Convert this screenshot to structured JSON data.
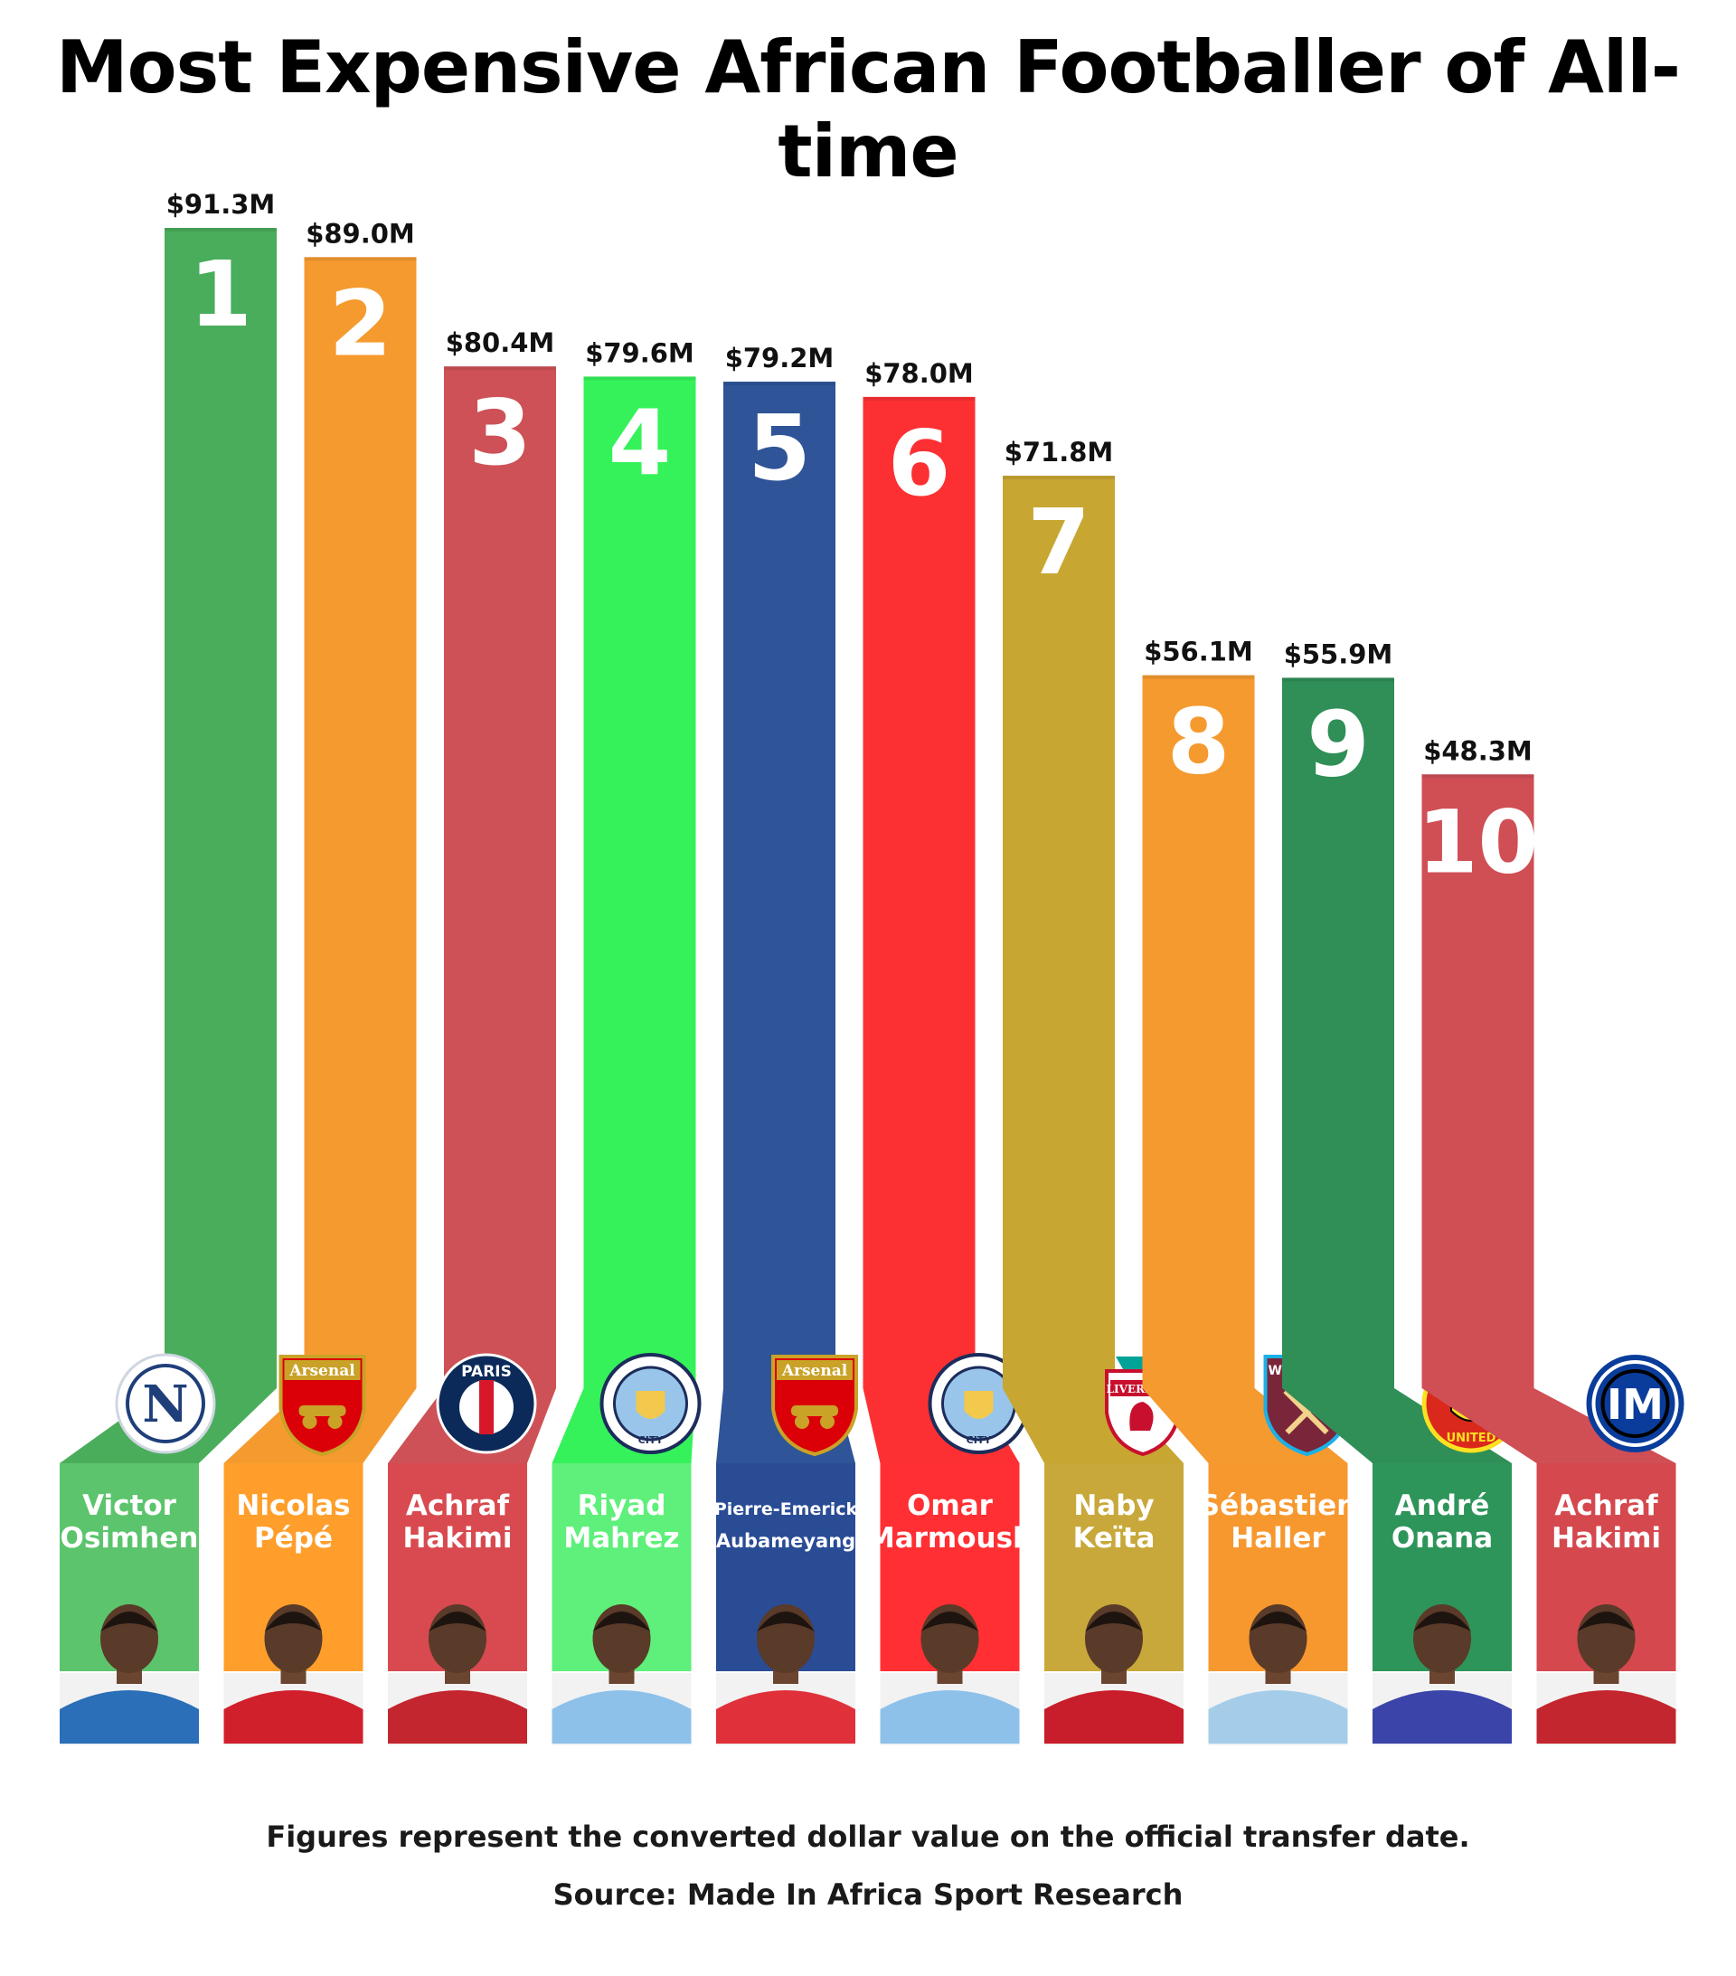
{
  "title": "Most Expensive African Footballer of All-time",
  "footnote": "Figures represent the converted dollar value on the official transfer date.",
  "source": "Source: Made In Africa Sport Research",
  "chart_data": {
    "type": "bar",
    "title": "Most Expensive African Footballer of All-time",
    "ylabel": "",
    "xlabel": "",
    "ylim": [
      0,
      91.3
    ],
    "grid": false,
    "legend": "none",
    "categories": [
      "Victor Osimhen",
      "Nicolas Pépé",
      "Achraf Hakimi",
      "Riyad Mahrez",
      "Pierre-Emerick Aubameyang",
      "Omar Marmoush",
      "Naby Keïta",
      "Sébastien Haller",
      "André Onana",
      "Achraf Hakimi"
    ],
    "values": [
      91.3,
      89.0,
      80.4,
      79.6,
      79.2,
      78.0,
      71.8,
      56.1,
      55.9,
      48.3
    ],
    "bars": [
      {
        "rank": "1",
        "value_label": "$91.3M",
        "value": 91.3,
        "name_lines": [
          "Victor",
          "Osimhen"
        ],
        "club": "Napoli",
        "crest": "napoli-crest-icon",
        "crest_text": "N",
        "color": "#4aad5b",
        "light": "#5cc46c",
        "shirt": "#2a6fb8"
      },
      {
        "rank": "2",
        "value_label": "$89.0M",
        "value": 89.0,
        "name_lines": [
          "Nicolas",
          "Pépé"
        ],
        "club": "Arsenal",
        "crest": "arsenal-crest-icon",
        "crest_text": "Arsenal",
        "color": "#f59a2f",
        "light": "#ff9e2b",
        "shirt": "#d0202c"
      },
      {
        "rank": "3",
        "value_label": "$80.4M",
        "value": 80.4,
        "name_lines": [
          "Achraf",
          "Hakimi"
        ],
        "club": "PSG",
        "crest": "psg-crest-icon",
        "crest_text": "PARIS",
        "color": "#cd5156",
        "light": "#d84a4f",
        "shirt": "#c3262e"
      },
      {
        "rank": "4",
        "value_label": "$79.6M",
        "value": 79.6,
        "name_lines": [
          "Riyad",
          "Mahrez"
        ],
        "club": "Manchester City",
        "crest": "man-city-crest-icon",
        "crest_text": "CITY",
        "color": "#35f25a",
        "light": "#5ef07a",
        "shirt": "#8ec1ea"
      },
      {
        "rank": "5",
        "value_label": "$79.2M",
        "value": 79.2,
        "name_lines": [
          "Pierre-Emerick",
          "Aubameyang"
        ],
        "club": "Arsenal",
        "crest": "arsenal-crest-icon",
        "crest_text": "Arsenal",
        "color": "#2f5497",
        "light": "#2a4c95",
        "shirt": "#e0303a"
      },
      {
        "rank": "6",
        "value_label": "$78.0M",
        "value": 78.0,
        "name_lines": [
          "Omar",
          "Marmoush"
        ],
        "club": "Manchester City",
        "crest": "man-city-crest-icon",
        "crest_text": "CITY",
        "color": "#fc3033",
        "light": "#ff2f33",
        "shirt": "#8ec1ea"
      },
      {
        "rank": "7",
        "value_label": "$71.8M",
        "value": 71.8,
        "name_lines": [
          "Naby",
          "Keïta"
        ],
        "club": "Liverpool",
        "crest": "liverpool-crest-icon",
        "crest_text": "LIVERPOOL",
        "color": "#c7a732",
        "light": "#c8a83a",
        "shirt": "#c81d2a"
      },
      {
        "rank": "8",
        "value_label": "$56.1M",
        "value": 56.1,
        "name_lines": [
          "Sébastien",
          "Haller"
        ],
        "club": "West Ham United",
        "crest": "west-ham-crest-icon",
        "crest_text": "WEST HAM UNITED",
        "color": "#f59a2f",
        "light": "#f7982f",
        "shirt": "#a5cdea"
      },
      {
        "rank": "9",
        "value_label": "$55.9M",
        "value": 55.9,
        "name_lines": [
          "André",
          "Onana"
        ],
        "club": "Manchester United",
        "crest": "man-united-crest-icon",
        "crest_text": "UNITED",
        "color": "#2f8f57",
        "light": "#2e955a",
        "shirt": "#3b44a8"
      },
      {
        "rank": "10",
        "value_label": "$48.3M",
        "value": 48.3,
        "name_lines": [
          "Achraf",
          "Hakimi"
        ],
        "club": "Inter",
        "crest": "inter-crest-icon",
        "crest_text": "IM",
        "color": "#cf4f55",
        "light": "#d4484e",
        "shirt": "#c3262e"
      }
    ]
  }
}
